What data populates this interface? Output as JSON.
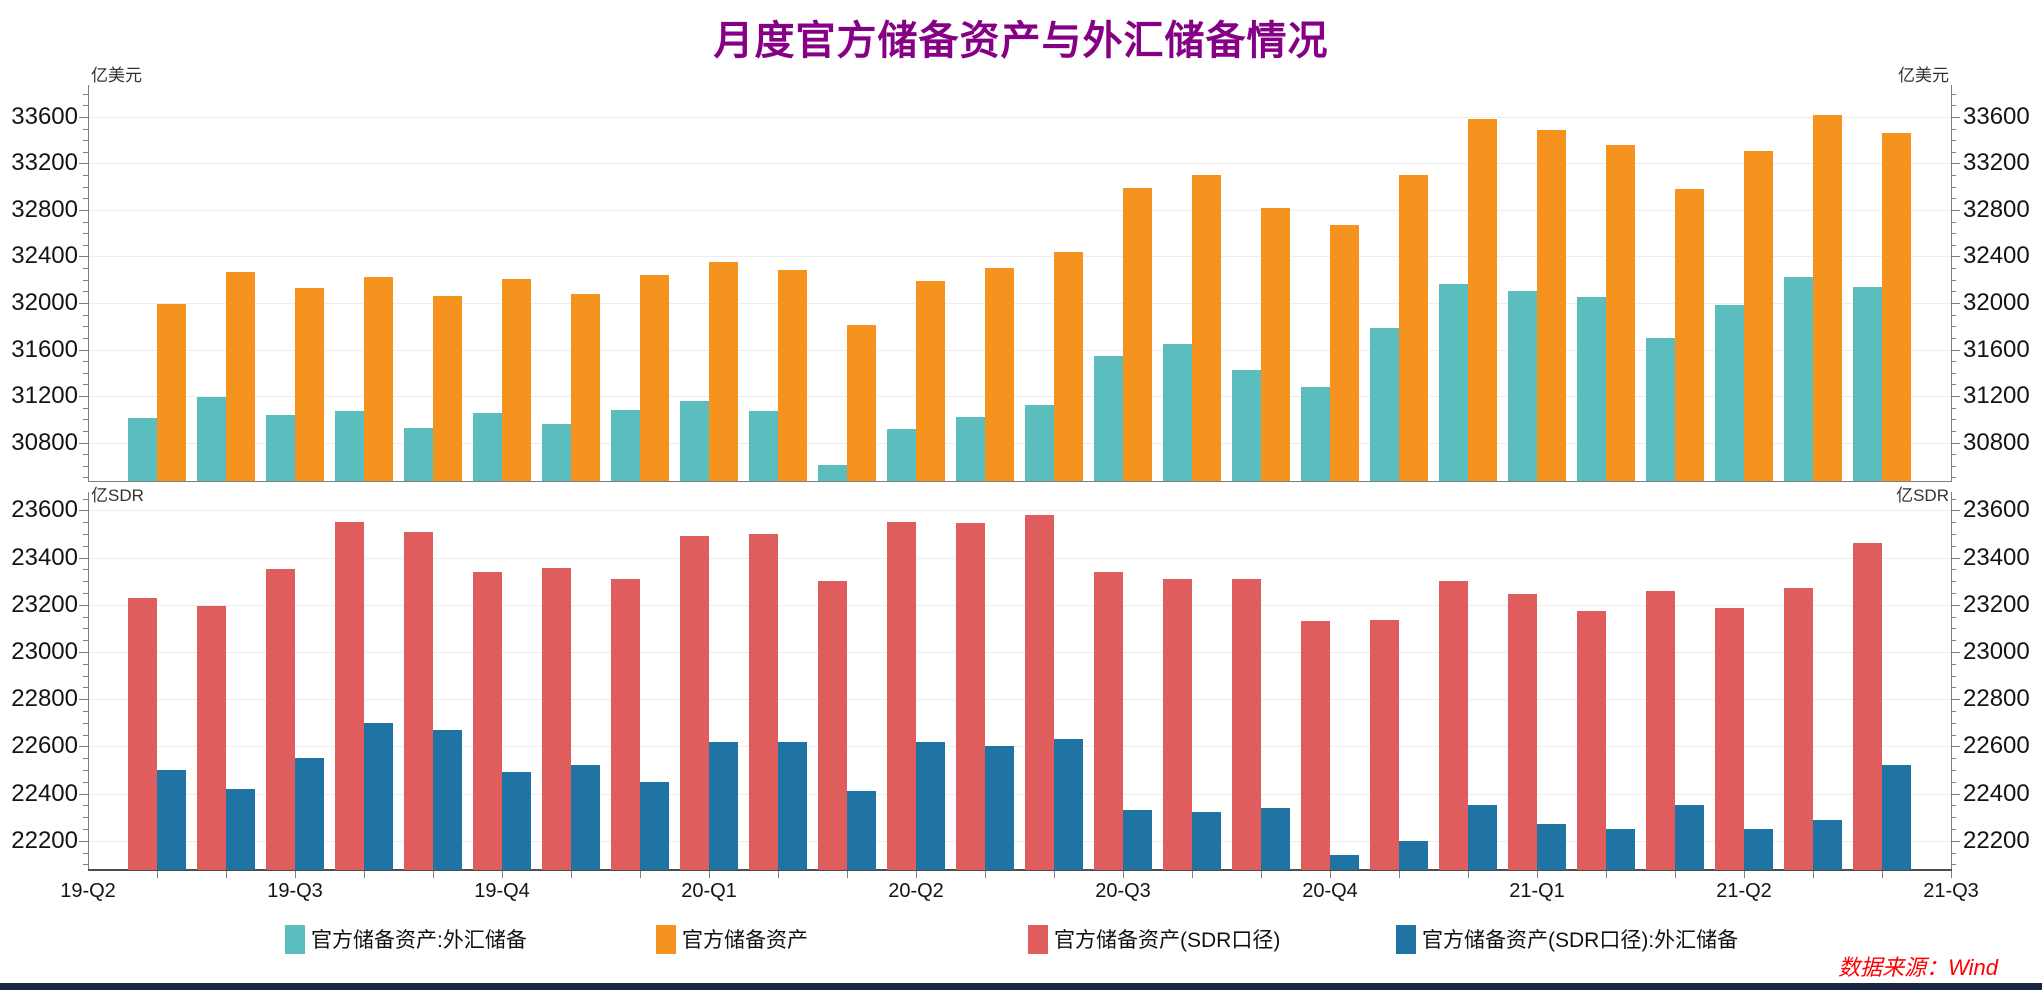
{
  "title": {
    "text": "月度官方储备资产与外汇储备情况"
  },
  "source_note": "数据来源：Wind",
  "palette": {
    "title": "#860086",
    "source": "#FF0000",
    "grid": "#EDEDED",
    "axis": "#7F7F7F",
    "axis_dark": "#4D4D4D",
    "bottom_strip": "#1A2740"
  },
  "x_tick_labels": [
    "19-Q2",
    "19-Q3",
    "19-Q4",
    "20-Q1",
    "20-Q2",
    "20-Q3",
    "20-Q4",
    "21-Q1",
    "21-Q2",
    "21-Q3"
  ],
  "chart_data": [
    {
      "type": "bar",
      "panel": "top",
      "unit_left": "亿美元",
      "unit_right": "亿美元",
      "ylim": [
        30469,
        33875
      ],
      "yticks": [
        30800,
        31200,
        31600,
        32000,
        32400,
        32800,
        33200,
        33600
      ],
      "minor_tick_step": 100,
      "grid": true,
      "categories_note": "26 consecutive months between the quarter ticks 19-Q2 and 21-Q3",
      "x_tick_labels": [
        "19-Q2",
        "19-Q3",
        "19-Q4",
        "20-Q1",
        "20-Q2",
        "20-Q3",
        "20-Q4",
        "21-Q1",
        "21-Q2",
        "21-Q3"
      ],
      "series": [
        {
          "name": "官方储备资产:外汇储备",
          "color": "#5BBDBE",
          "values": [
            31010,
            31192,
            31037,
            31072,
            30924,
            31052,
            30956,
            31079,
            31155,
            31067,
            30606,
            30915,
            31017,
            31123,
            31544,
            31646,
            31426,
            31280,
            31785,
            32165,
            32107,
            32050,
            31700,
            31982,
            32220,
            32140
          ]
        },
        {
          "name": "官方储备资产",
          "color": "#F6921E",
          "values": [
            31990,
            32264,
            32132,
            32220,
            32062,
            32203,
            32079,
            32240,
            32350,
            32280,
            31810,
            32190,
            32300,
            32440,
            32990,
            33100,
            32820,
            32670,
            33100,
            33580,
            33490,
            33360,
            32980,
            33310,
            33620,
            33460
          ]
        }
      ]
    },
    {
      "type": "bar",
      "panel": "bottom",
      "unit_left": "亿SDR",
      "unit_right": "亿SDR",
      "ylim": [
        22076,
        23678
      ],
      "yticks": [
        22200,
        22400,
        22600,
        22800,
        23000,
        23200,
        23400,
        23600
      ],
      "minor_tick_step": 50,
      "grid": true,
      "categories_note": "same 26 months as top panel",
      "x_tick_labels": [
        "19-Q2",
        "19-Q3",
        "19-Q4",
        "20-Q1",
        "20-Q2",
        "20-Q3",
        "20-Q4",
        "21-Q1",
        "21-Q2",
        "21-Q3"
      ],
      "series": [
        {
          "name": "官方储备资产(SDR口径)",
          "color": "#E05D5D",
          "values": [
            23230,
            23195,
            23350,
            23550,
            23510,
            23340,
            23355,
            23310,
            23490,
            23500,
            23300,
            23550,
            23545,
            23580,
            23340,
            23310,
            23310,
            23130,
            23135,
            23300,
            23245,
            23175,
            23260,
            23185,
            23270,
            23460
          ]
        },
        {
          "name": "官方储备资产(SDR口径):外汇储备",
          "color": "#2074A4",
          "values": [
            22500,
            22420,
            22550,
            22700,
            22670,
            22490,
            22520,
            22450,
            22620,
            22620,
            22410,
            22620,
            22600,
            22630,
            22330,
            22320,
            22340,
            22140,
            22200,
            22350,
            22270,
            22250,
            22350,
            22250,
            22290,
            22520
          ]
        }
      ]
    }
  ],
  "legend": {
    "items": [
      {
        "label": "官方储备资产:外汇储备",
        "color": "#5BBDBE"
      },
      {
        "label": "官方储备资产",
        "color": "#F6921E"
      },
      {
        "label": "官方储备资产(SDR口径)",
        "color": "#E05D5D"
      },
      {
        "label": "官方储备资产(SDR口径):外汇储备",
        "color": "#2074A4"
      }
    ]
  }
}
